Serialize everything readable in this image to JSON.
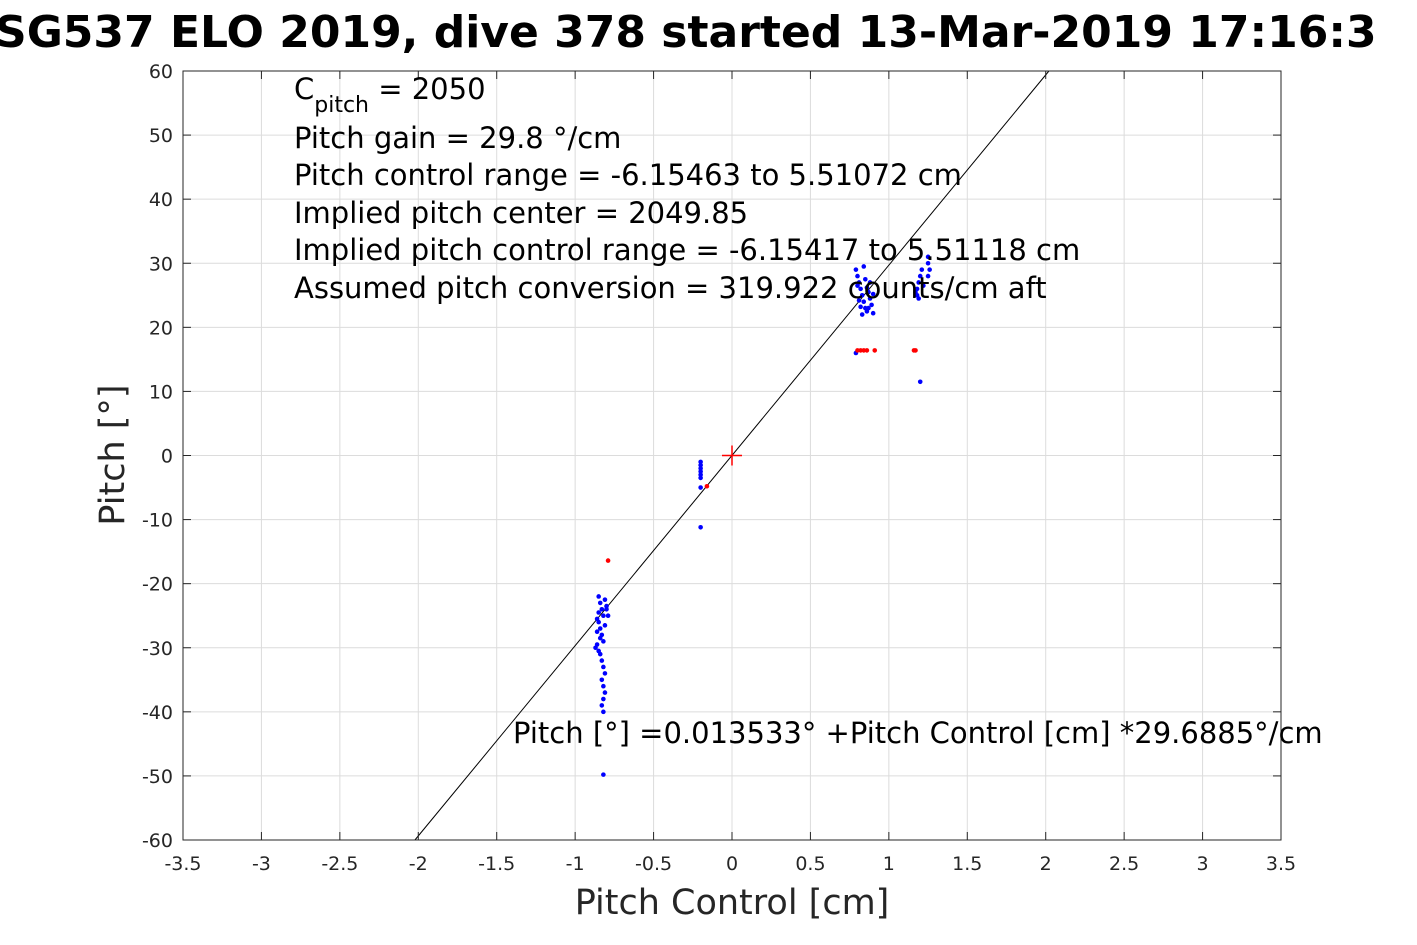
{
  "chart_data": {
    "type": "scatter",
    "title": "SG537 ELO 2019, dive 378 started 13-Mar-2019 17:16:3",
    "xlabel": "Pitch Control [cm]",
    "ylabel": "Pitch [°]",
    "xlim": [
      -3.5,
      3.5
    ],
    "ylim": [
      -60,
      60
    ],
    "xticks": [
      -3.5,
      -3,
      -2.5,
      -2,
      -1.5,
      -1,
      -0.5,
      0,
      0.5,
      1,
      1.5,
      2,
      2.5,
      3,
      3.5
    ],
    "xtick_labels": [
      "-3.5",
      "-3",
      "-2.5",
      "-2",
      "-1.5",
      "-1",
      "-0.5",
      "0",
      "0.5",
      "1",
      "1.5",
      "2",
      "2.5",
      "3",
      "3.5"
    ],
    "yticks": [
      -60,
      -50,
      -40,
      -30,
      -20,
      -10,
      0,
      10,
      20,
      30,
      40,
      50,
      60
    ],
    "ytick_labels": [
      "-60",
      "-50",
      "-40",
      "-30",
      "-20",
      "-10",
      "0",
      "10",
      "20",
      "30",
      "40",
      "50",
      "60"
    ],
    "grid": true,
    "annotations": {
      "cpitch_main": "C",
      "cpitch_sub": "pitch",
      "cpitch_value": " = 2050",
      "lines": [
        "Pitch gain = 29.8 °/cm",
        "Pitch control range = -6.15463 to 5.51072 cm",
        "Implied pitch center = 2049.85",
        "Implied pitch control range = -6.15417 to 5.51118 cm",
        "Assumed pitch conversion = 319.922 counts/cm aft"
      ],
      "fit_label": "Pitch [°] =0.013533° +Pitch Control [cm] *29.6885°/cm"
    },
    "fit_line": {
      "intercept": 0.013533,
      "slope": 29.6885,
      "color": "#000000"
    },
    "center_marker": {
      "x": 0,
      "y": 0,
      "color": "#ff0000"
    },
    "series": [
      {
        "color": "#0000ff",
        "points": [
          [
            -0.85,
            -22
          ],
          [
            -0.84,
            -23
          ],
          [
            -0.83,
            -24
          ],
          [
            -0.82,
            -25
          ],
          [
            -0.86,
            -25.5
          ],
          [
            -0.81,
            -22.5
          ],
          [
            -0.8,
            -23.5
          ],
          [
            -0.85,
            -26
          ],
          [
            -0.84,
            -27
          ],
          [
            -0.83,
            -28
          ],
          [
            -0.82,
            -29
          ],
          [
            -0.86,
            -29.5
          ],
          [
            -0.87,
            -30
          ],
          [
            -0.85,
            -30.5
          ],
          [
            -0.84,
            -31
          ],
          [
            -0.83,
            -32
          ],
          [
            -0.82,
            -33
          ],
          [
            -0.81,
            -34
          ],
          [
            -0.83,
            -35
          ],
          [
            -0.82,
            -36
          ],
          [
            -0.81,
            -37
          ],
          [
            -0.82,
            -38
          ],
          [
            -0.83,
            -39
          ],
          [
            -0.82,
            -40
          ],
          [
            -0.8,
            -24
          ],
          [
            -0.79,
            -25
          ],
          [
            -0.81,
            -26.5
          ],
          [
            -0.84,
            -28.5
          ],
          [
            -0.86,
            -27.5
          ],
          [
            -0.85,
            -24.5
          ],
          [
            -0.82,
            -49.8
          ],
          [
            -0.2,
            -1
          ],
          [
            -0.2,
            -1.5
          ],
          [
            -0.2,
            -2
          ],
          [
            -0.2,
            -2.5
          ],
          [
            -0.2,
            -3
          ],
          [
            -0.2,
            -3.5
          ],
          [
            -0.2,
            -5
          ],
          [
            -0.2,
            -11.2
          ],
          [
            0.79,
            29
          ],
          [
            0.8,
            28
          ],
          [
            0.81,
            27
          ],
          [
            0.82,
            26
          ],
          [
            0.83,
            25
          ],
          [
            0.84,
            24
          ],
          [
            0.85,
            23
          ],
          [
            0.86,
            22.5
          ],
          [
            0.87,
            25.5
          ],
          [
            0.88,
            24.5
          ],
          [
            0.89,
            23.5
          ],
          [
            0.9,
            22.2
          ],
          [
            0.8,
            26.5
          ],
          [
            0.81,
            24.2
          ],
          [
            0.82,
            23.2
          ],
          [
            0.84,
            29.5
          ],
          [
            0.85,
            27.5
          ],
          [
            0.86,
            26.2
          ],
          [
            0.88,
            27
          ],
          [
            0.9,
            25.2
          ],
          [
            0.83,
            22
          ],
          [
            0.87,
            23
          ],
          [
            0.79,
            16
          ],
          [
            1.18,
            25
          ],
          [
            1.18,
            26
          ],
          [
            1.19,
            27
          ],
          [
            1.2,
            28
          ],
          [
            1.21,
            29
          ],
          [
            1.22,
            26.5
          ],
          [
            1.19,
            24.5
          ],
          [
            1.17,
            25.5
          ],
          [
            1.25,
            30
          ],
          [
            1.25,
            31
          ],
          [
            1.26,
            29
          ],
          [
            1.25,
            28
          ],
          [
            1.2,
            11.5
          ]
        ]
      },
      {
        "color": "#ff0000",
        "points": [
          [
            -0.79,
            -16.4
          ],
          [
            -0.16,
            -4.8
          ],
          [
            0.8,
            16.4
          ],
          [
            0.82,
            16.4
          ],
          [
            0.84,
            16.4
          ],
          [
            0.86,
            16.4
          ],
          [
            0.91,
            16.4
          ],
          [
            1.16,
            16.4
          ],
          [
            1.17,
            16.4
          ]
        ]
      }
    ]
  }
}
